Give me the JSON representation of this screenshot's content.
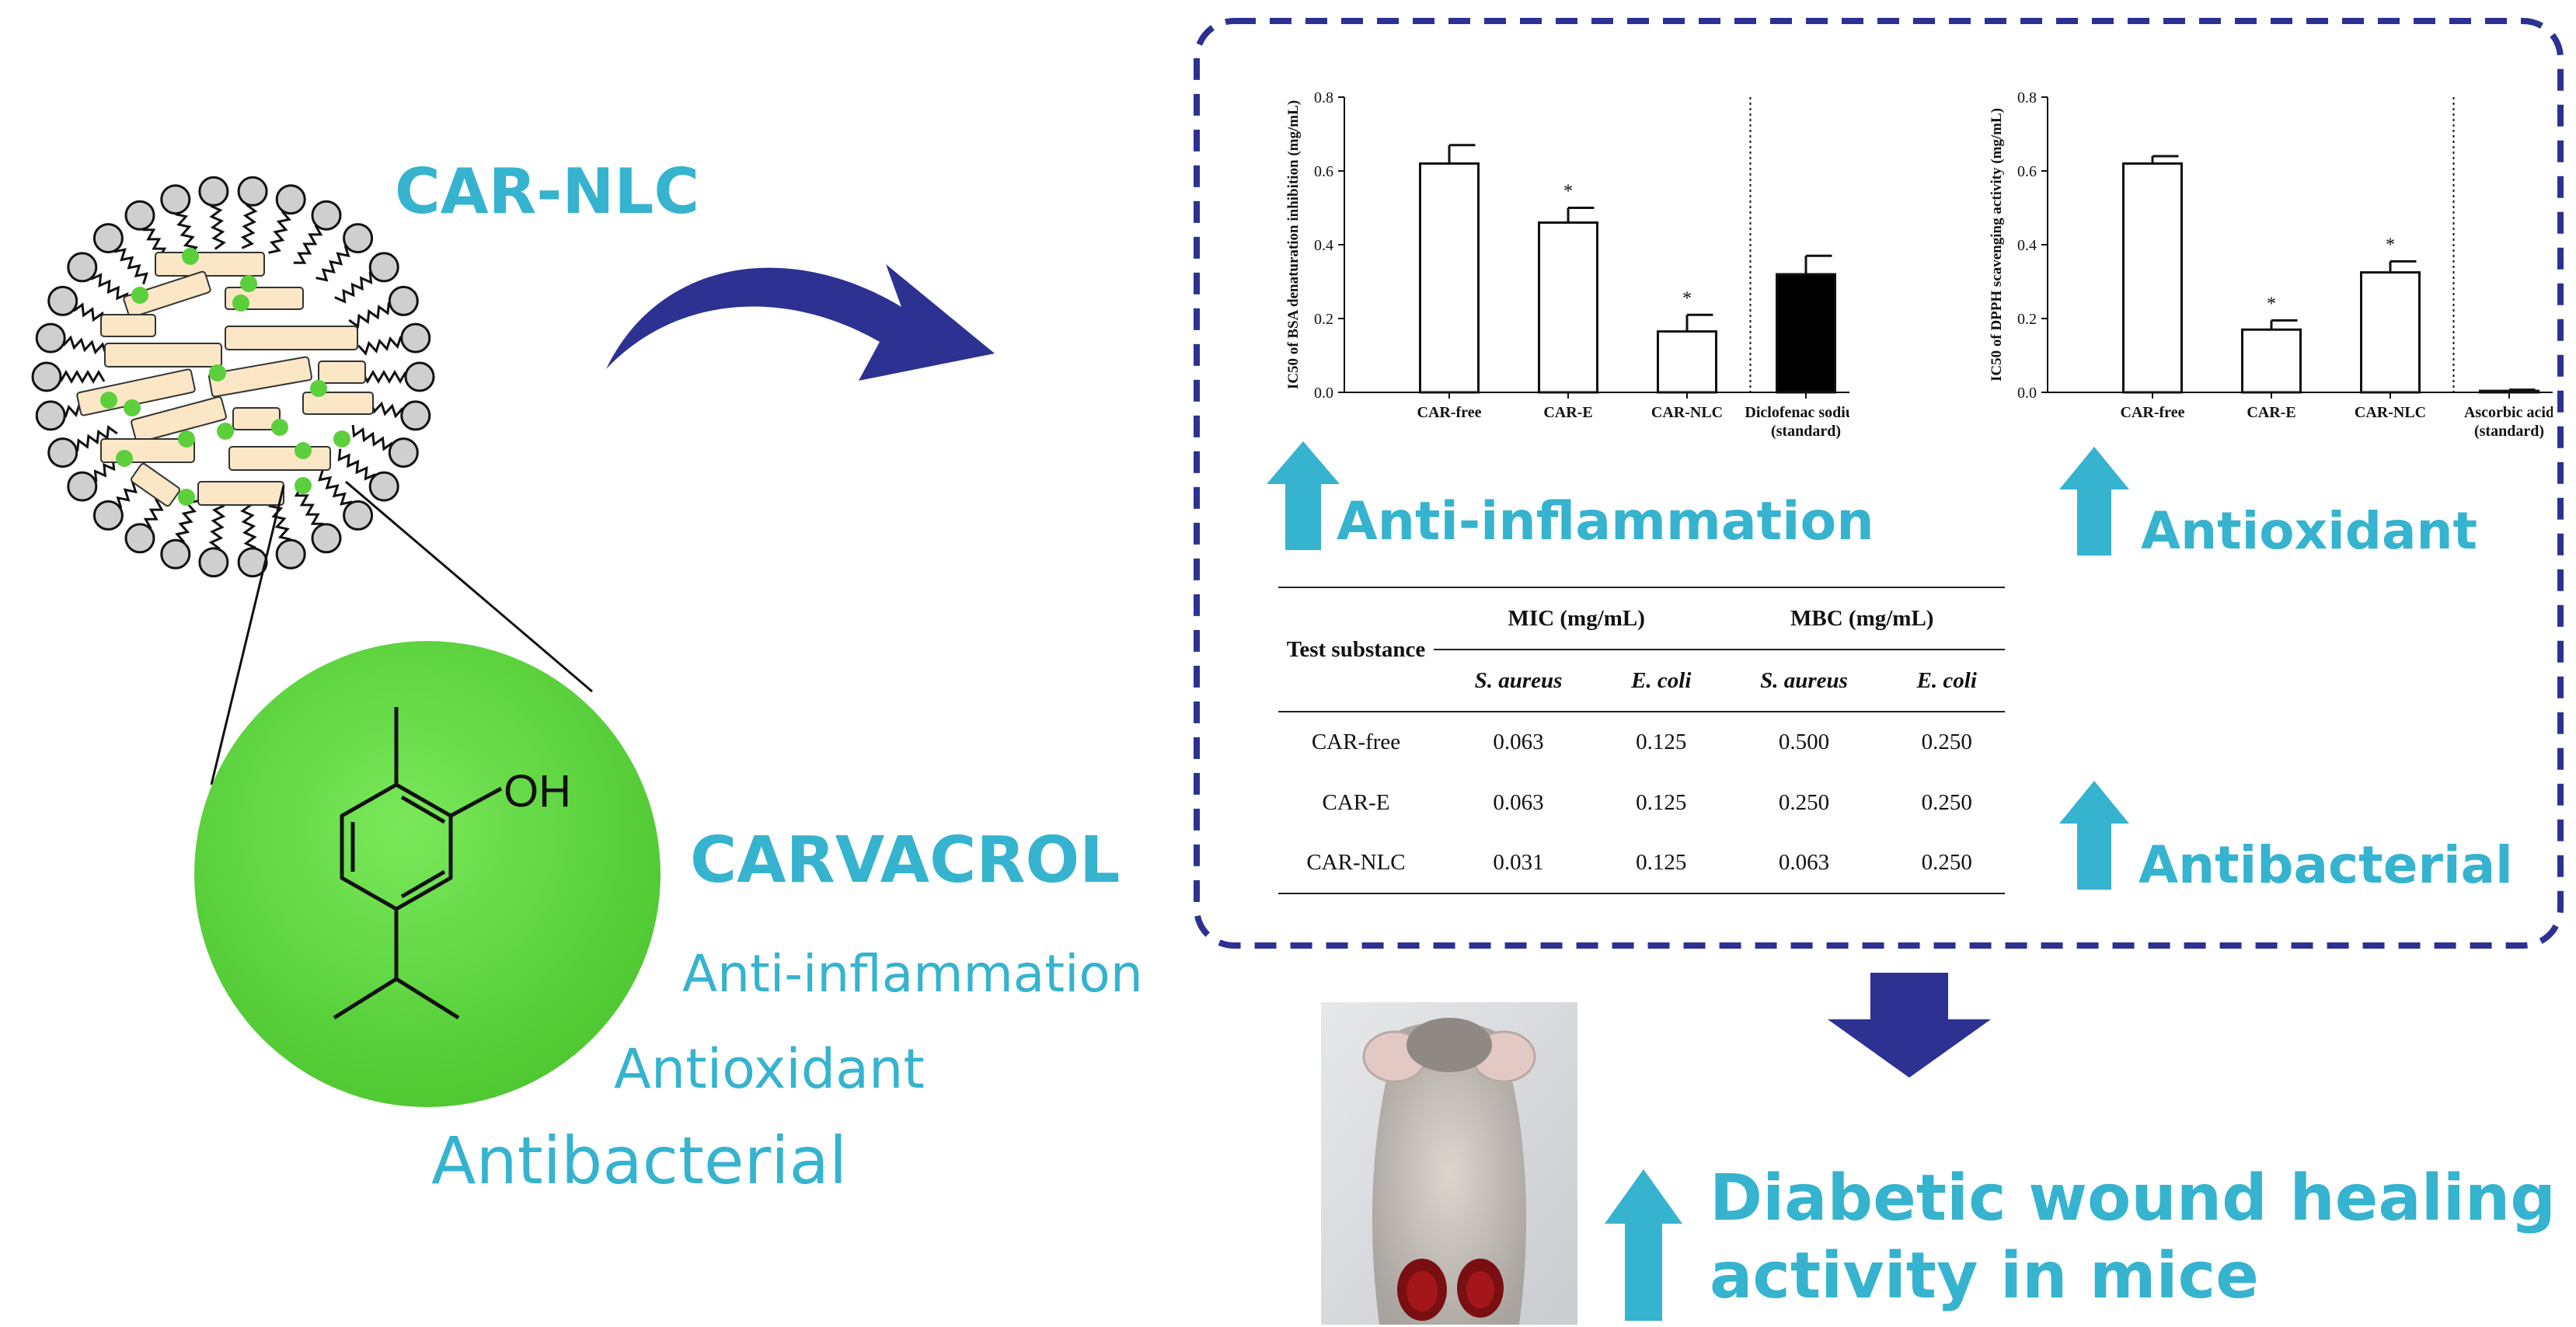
{
  "nanoparticle": {
    "label": "CAR-NLC"
  },
  "molecule": {
    "name": "CARVACROL",
    "group_label": "OH",
    "activities": [
      "Anti-inflammation",
      "Antioxidant",
      "Antibacterial"
    ]
  },
  "chart_data": [
    {
      "type": "bar",
      "categories": [
        "CAR-free",
        "CAR-E",
        "CAR-NLC",
        "Diclofenac sodium (standard)"
      ],
      "tick_labels": [
        [
          "CAR-free"
        ],
        [
          "CAR-E"
        ],
        [
          "CAR-NLC"
        ],
        [
          "Diclofenac sodium",
          "(standard)"
        ]
      ],
      "values": [
        0.62,
        0.46,
        0.165,
        0.32
      ],
      "errors": [
        0.05,
        0.04,
        0.045,
        0.05
      ],
      "significance": [
        "",
        "*",
        "*",
        ""
      ],
      "bar_colors": [
        "#ffffff",
        "#ffffff",
        "#ffffff",
        "#000000"
      ],
      "ylabel": "IC50 of BSA denaturation inhibition (mg/mL)",
      "ylim": [
        0,
        0.8
      ],
      "yticks": [
        "0.0",
        "0.2",
        "0.4",
        "0.6",
        "0.8"
      ],
      "separator_after_index": 2,
      "grid": false,
      "annotation": "Anti-inflammation"
    },
    {
      "type": "bar",
      "categories": [
        "CAR-free",
        "CAR-E",
        "CAR-NLC",
        "Ascorbic acid (standard)"
      ],
      "tick_labels": [
        [
          "CAR-free"
        ],
        [
          "CAR-E"
        ],
        [
          "CAR-NLC"
        ],
        [
          "Ascorbic acid",
          "(standard)"
        ]
      ],
      "values": [
        0.62,
        0.17,
        0.325,
        0.004
      ],
      "errors": [
        0.02,
        0.025,
        0.03,
        0.003
      ],
      "significance": [
        "",
        "*",
        "*",
        ""
      ],
      "bar_colors": [
        "#ffffff",
        "#ffffff",
        "#ffffff",
        "#ffffff"
      ],
      "ylabel": "IC50 of DPPH scavenging activity (mg/mL)",
      "ylim": [
        0,
        0.8
      ],
      "yticks": [
        "0.0",
        "0.2",
        "0.4",
        "0.6",
        "0.8"
      ],
      "separator_after_index": 2,
      "grid": false,
      "annotation": "Antioxidant"
    }
  ],
  "table": {
    "row_header": "Test substance",
    "groups": [
      "MIC (mg/mL)",
      "MBC (mg/mL)"
    ],
    "subheaders": [
      "S. aureus",
      "E. coli",
      "S. aureus",
      "E. coli"
    ],
    "rows": [
      {
        "name": "CAR-free",
        "values": [
          "0.063",
          "0.125",
          "0.500",
          "0.250"
        ]
      },
      {
        "name": "CAR-E",
        "values": [
          "0.063",
          "0.125",
          "0.250",
          "0.250"
        ]
      },
      {
        "name": "CAR-NLC",
        "values": [
          "0.031",
          "0.125",
          "0.063",
          "0.250"
        ]
      }
    ],
    "annotation": "Antibacterial"
  },
  "outcome": {
    "line1": "Diabetic wound healing",
    "line2": "activity in mice"
  },
  "colors": {
    "accent": "#35b3cf",
    "arrow": "#2c3192",
    "frame": "#2c3192",
    "sphere": "#5dd43f",
    "lipid_bead": "#5ccf3c",
    "lipid_block": "#fbe6c6"
  }
}
